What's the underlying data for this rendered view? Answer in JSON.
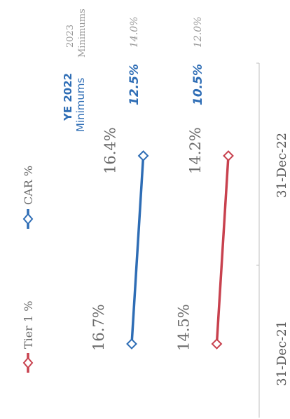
{
  "chart_data": {
    "type": "line",
    "orientation": "rotated-90-ccw",
    "categories": [
      "31-Dec-21",
      "31-Dec-22"
    ],
    "series": [
      {
        "name": "Tier 1 %",
        "color": "#c8414e",
        "values": [
          14.5,
          14.2
        ],
        "labels": [
          "14.5%",
          "14.2%"
        ]
      },
      {
        "name": "CAR %",
        "color": "#2e6db5",
        "values": [
          16.7,
          16.4
        ],
        "labels": [
          "16.7%",
          "16.4%"
        ]
      }
    ],
    "legend": {
      "placement": "top"
    },
    "minimums": {
      "ye2022_header_1": "YE 2022",
      "ye2022_header_2": "Minimums",
      "ye2022": {
        "car": "12.5%",
        "tier1": "10.5%"
      },
      "y2023_header_1": "2023",
      "y2023_header_2": "Minimums",
      "y2023": {
        "car": "14.0%",
        "tier1": "12.0%"
      }
    }
  }
}
